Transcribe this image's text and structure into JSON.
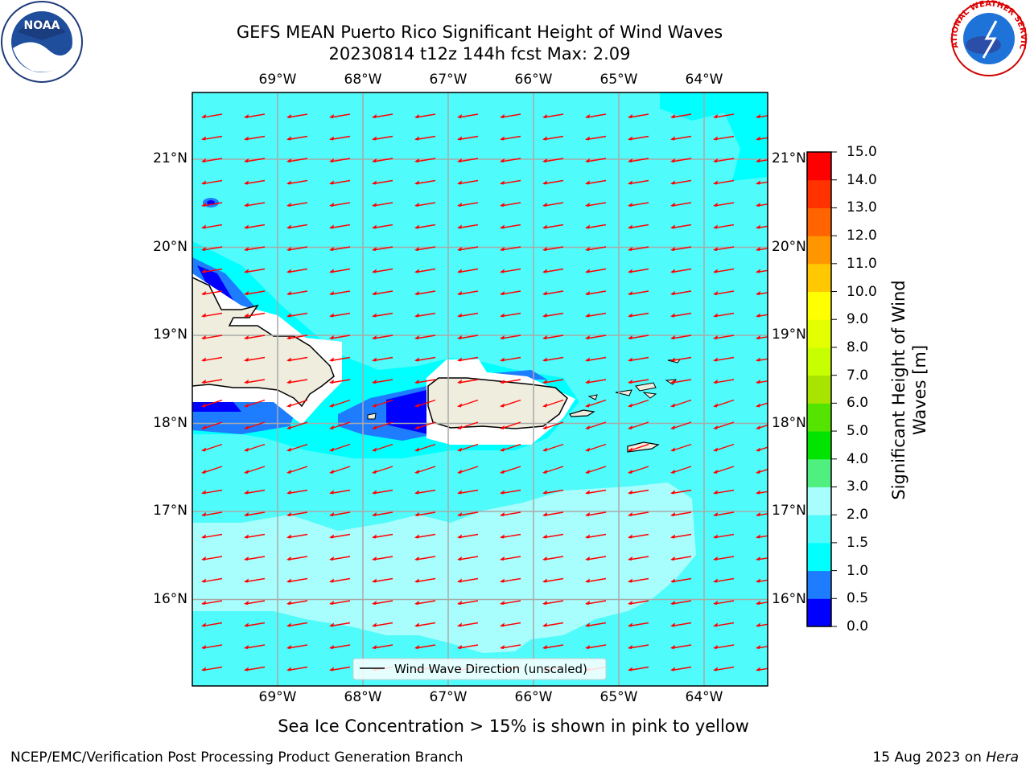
{
  "header": {
    "title_line1": "GEFS MEAN Puerto Rico Significant Height of Wind Waves",
    "title_line2": "20230814 t12z 144h fcst   Max: 2.09"
  },
  "logos": {
    "left": {
      "name": "noaa-logo",
      "text": "NOAA"
    },
    "right": {
      "name": "nws-logo",
      "text": "NATIONAL WEATHER SERVICE"
    }
  },
  "map": {
    "lon_ticks": [
      {
        "lon": -69,
        "label": "69°W"
      },
      {
        "lon": -68,
        "label": "68°W"
      },
      {
        "lon": -67,
        "label": "67°W"
      },
      {
        "lon": -66,
        "label": "66°W"
      },
      {
        "lon": -65,
        "label": "65°W"
      },
      {
        "lon": -64,
        "label": "64°W"
      }
    ],
    "lat_ticks": [
      {
        "lat": 21,
        "label": "21°N"
      },
      {
        "lat": 20,
        "label": "20°N"
      },
      {
        "lat": 19,
        "label": "19°N"
      },
      {
        "lat": 18,
        "label": "18°N"
      },
      {
        "lat": 17,
        "label": "17°N"
      },
      {
        "lat": 16,
        "label": "16°N"
      }
    ],
    "legend_label": "Wind Wave Direction (unscaled)",
    "colors": {
      "land": "#efedde",
      "sea_base": "#4ffbfb",
      "arrow": "#ff0000",
      "grid": "#a9a9a9"
    }
  },
  "colorbar": {
    "label": "Significant Height of Wind Waves [m]",
    "ticks": [
      "0.0",
      "0.5",
      "1.0",
      "1.5",
      "2.0",
      "3.0",
      "4.0",
      "5.0",
      "6.0",
      "7.0",
      "8.0",
      "9.0",
      "10.0",
      "11.0",
      "12.0",
      "13.0",
      "14.0",
      "15.0"
    ],
    "colors": [
      "#0000ff",
      "#1e7dff",
      "#00ffff",
      "#4ffbfb",
      "#a8fdfd",
      "#4ff080",
      "#00e400",
      "#55e400",
      "#a8e400",
      "#c8ff00",
      "#e4ff00",
      "#ffff00",
      "#ffc800",
      "#ff9600",
      "#ff6400",
      "#ff3200",
      "#ff0000"
    ]
  },
  "caption": "Sea Ice Concentration > 15% is shown in pink to yellow",
  "footer": {
    "left": "NCEP/EMC/Verification Post Processing Product Generation Branch",
    "right_date": "15 Aug 2023 on ",
    "right_host": "Hera"
  }
}
